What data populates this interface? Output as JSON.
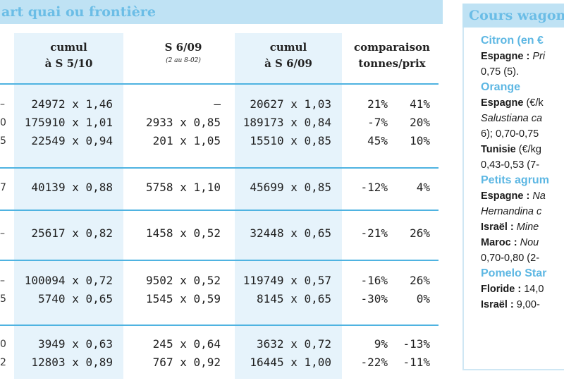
{
  "left_panel": {
    "title": "art quai ou frontière",
    "columns": {
      "c1": {
        "line1": "cumul",
        "line2": "à S 5/10"
      },
      "c2": {
        "line1": "S 6/09",
        "line2": "(2 au 8-02)"
      },
      "c3": {
        "line1": "cumul",
        "line2": "à S 6/09"
      },
      "c4": {
        "line1": "comparaison",
        "line2": "tonnes/prix"
      }
    },
    "rows": [
      {
        "edge": "–",
        "c1": "24972 x 1,46",
        "c2": "—",
        "c3": "20627 x 1,03",
        "pct_t": "21%",
        "pct_p": "41%"
      },
      {
        "edge": "0",
        "c1": "175910 x 1,01",
        "c2": "2933 x 0,85",
        "c3": "189173 x 0,84",
        "pct_t": "-7%",
        "pct_p": "20%"
      },
      {
        "edge": "5",
        "c1": "22549 x 0,94",
        "c2": "201 x 1,05",
        "c3": "15510 x 0,85",
        "pct_t": "45%",
        "pct_p": "10%"
      },
      {
        "edge": "7",
        "c1": "40139 x 0,88",
        "c2": "5758 x 1,10",
        "c3": "45699 x 0,85",
        "pct_t": "-12%",
        "pct_p": "4%"
      },
      {
        "edge": "–",
        "c1": "25617 x 0,82",
        "c2": "1458 x 0,52",
        "c3": "32448 x 0,65",
        "pct_t": "-21%",
        "pct_p": "26%"
      },
      {
        "edge": "–",
        "c1": "100094 x 0,72",
        "c2": "9502 x 0,52",
        "c3": "119749 x 0,57",
        "pct_t": "-16%",
        "pct_p": "26%"
      },
      {
        "edge": "5",
        "c1": "5740 x 0,65",
        "c2": "1545 x 0,59",
        "c3": "8145 x 0,65",
        "pct_t": "-30%",
        "pct_p": "0%"
      },
      {
        "edge": "0",
        "c1": "3949 x 0,63",
        "c2": "245 x 0,64",
        "c3": "3632 x 0,72",
        "pct_t": "9%",
        "pct_p": "-13%"
      },
      {
        "edge": "2",
        "c1": "12803 x 0,89",
        "c2": "767 x 0,92",
        "c3": "16445 x 1,00",
        "pct_t": "-22%",
        "pct_p": "-11%"
      }
    ]
  },
  "sidebar": {
    "title": "Cours wagon",
    "lines": [
      {
        "a": "Citron",
        "b": " (en €"
      },
      {
        "a": "Espagne :",
        "b": " Pri"
      },
      {
        "a": "0,75 (5).",
        "b": ""
      },
      {
        "a": "Orange",
        "b": ""
      },
      {
        "a": "Espagne",
        "b": " (€/k"
      },
      {
        "a": "Salustiana",
        "b": " ca"
      },
      {
        "a": "6); 0,70-0,75",
        "b": ""
      },
      {
        "a": "Tunisie",
        "b": " (€/kg"
      },
      {
        "a": "0,43-0,53 (7-",
        "b": ""
      },
      {
        "a": "Petits agrum",
        "b": ""
      },
      {
        "a": "Espagne :",
        "b": " Na"
      },
      {
        "a": "Hernandina c",
        "b": ""
      },
      {
        "a": "Israël :",
        "b": " Mine"
      },
      {
        "a": "Maroc :",
        "b": " Nou"
      },
      {
        "a": "0,70-0,80 (2-",
        "b": ""
      },
      {
        "a": "Pomelo Star",
        "b": ""
      },
      {
        "a": "Floride :",
        "b": " 14,0"
      },
      {
        "a": "Israël :",
        "b": " 9,00-"
      }
    ]
  }
}
